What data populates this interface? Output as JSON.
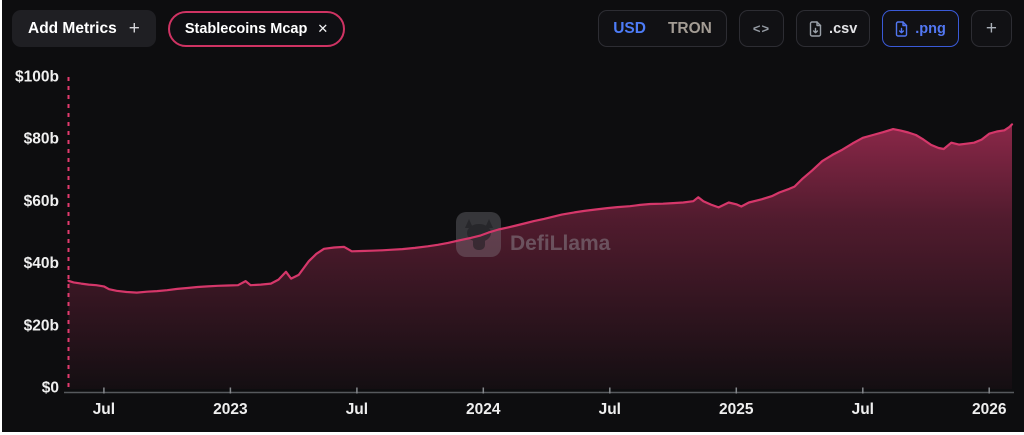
{
  "colors": {
    "background": "#0d0d0f",
    "accent_pink": "#d5376a",
    "dashed_line_pink": "#e23a6e",
    "selected_blue": "#4d7cf7",
    "png_button_blue": "#5277f2",
    "axis_line_gray": "#56595d",
    "tick_text": "#efefef",
    "watermark_gray": "#96969d"
  },
  "toolbar": {
    "add_metrics": {
      "label": "Add Metrics",
      "icon": "+"
    },
    "metric_chip": {
      "label": "Stablecoins Mcap",
      "close_icon": "✕"
    },
    "currency_toggle": {
      "selected": "USD",
      "options": [
        {
          "label": "USD"
        },
        {
          "label": "TRON"
        }
      ]
    },
    "embed_button": {
      "label": "<>"
    },
    "csv_button": {
      "label": ".csv"
    },
    "png_button": {
      "label": ".png"
    },
    "add_chart_button": {
      "label": "+"
    }
  },
  "watermark": {
    "label": "DefiLlama"
  },
  "chart_data": {
    "type": "area",
    "title": "Stablecoins Mcap",
    "currency": "USD",
    "unit": "USD billions",
    "grid": false,
    "legend_position": "none",
    "ylim": [
      0,
      100
    ],
    "x_range": [
      2022.358,
      2026.09
    ],
    "y_ticks": [
      {
        "label": "$100b",
        "value": 100
      },
      {
        "label": "$80b",
        "value": 80
      },
      {
        "label": "$60b",
        "value": 60
      },
      {
        "label": "$40b",
        "value": 40
      },
      {
        "label": "$20b",
        "value": 20
      },
      {
        "label": "$0",
        "value": 0
      }
    ],
    "x_ticks": [
      {
        "label": "Jul",
        "year": 2022.5
      },
      {
        "label": "2023",
        "year": 2023
      },
      {
        "label": "Jul",
        "year": 2023.5
      },
      {
        "label": "2024",
        "year": 2024
      },
      {
        "label": "Jul",
        "year": 2024.5
      },
      {
        "label": "2025",
        "year": 2025
      },
      {
        "label": "Jul",
        "year": 2025.5
      },
      {
        "label": "2026",
        "year": 2026
      }
    ],
    "series": [
      {
        "name": "Stablecoins Mcap",
        "color": "#d5376a",
        "points": [
          [
            2022.36,
            34.3
          ],
          [
            2022.38,
            33.8
          ],
          [
            2022.41,
            33.4
          ],
          [
            2022.44,
            33.1
          ],
          [
            2022.47,
            32.9
          ],
          [
            2022.5,
            32.5
          ],
          [
            2022.52,
            31.6
          ],
          [
            2022.55,
            31.1
          ],
          [
            2022.59,
            30.7
          ],
          [
            2022.63,
            30.5
          ],
          [
            2022.67,
            30.8
          ],
          [
            2022.71,
            31.0
          ],
          [
            2022.75,
            31.3
          ],
          [
            2022.79,
            31.7
          ],
          [
            2022.83,
            32.0
          ],
          [
            2022.87,
            32.3
          ],
          [
            2022.91,
            32.5
          ],
          [
            2022.95,
            32.7
          ],
          [
            2022.99,
            32.8
          ],
          [
            2023.03,
            32.9
          ],
          [
            2023.06,
            34.2
          ],
          [
            2023.08,
            32.9
          ],
          [
            2023.12,
            33.1
          ],
          [
            2023.16,
            33.4
          ],
          [
            2023.19,
            34.7
          ],
          [
            2023.22,
            37.2
          ],
          [
            2023.24,
            35.0
          ],
          [
            2023.27,
            36.2
          ],
          [
            2023.29,
            38.4
          ],
          [
            2023.31,
            40.6
          ],
          [
            2023.34,
            43.0
          ],
          [
            2023.37,
            44.6
          ],
          [
            2023.41,
            45.0
          ],
          [
            2023.45,
            45.2
          ],
          [
            2023.48,
            43.8
          ],
          [
            2023.52,
            43.9
          ],
          [
            2023.56,
            44.0
          ],
          [
            2023.6,
            44.1
          ],
          [
            2023.64,
            44.3
          ],
          [
            2023.68,
            44.5
          ],
          [
            2023.73,
            44.9
          ],
          [
            2023.78,
            45.4
          ],
          [
            2023.82,
            45.9
          ],
          [
            2023.86,
            46.5
          ],
          [
            2023.91,
            47.4
          ],
          [
            2023.95,
            48.1
          ],
          [
            2023.99,
            48.9
          ],
          [
            2024.02,
            49.8
          ],
          [
            2024.06,
            50.8
          ],
          [
            2024.1,
            51.5
          ],
          [
            2024.13,
            52.1
          ],
          [
            2024.17,
            52.9
          ],
          [
            2024.2,
            53.5
          ],
          [
            2024.24,
            54.2
          ],
          [
            2024.28,
            55.0
          ],
          [
            2024.31,
            55.6
          ],
          [
            2024.36,
            56.3
          ],
          [
            2024.4,
            56.8
          ],
          [
            2024.44,
            57.2
          ],
          [
            2024.49,
            57.7
          ],
          [
            2024.53,
            58.0
          ],
          [
            2024.58,
            58.3
          ],
          [
            2024.62,
            58.7
          ],
          [
            2024.66,
            59.0
          ],
          [
            2024.71,
            59.1
          ],
          [
            2024.75,
            59.3
          ],
          [
            2024.79,
            59.5
          ],
          [
            2024.83,
            59.9
          ],
          [
            2024.85,
            61.2
          ],
          [
            2024.87,
            59.9
          ],
          [
            2024.9,
            58.8
          ],
          [
            2024.93,
            57.9
          ],
          [
            2024.97,
            59.5
          ],
          [
            2025.0,
            58.9
          ],
          [
            2025.02,
            58.2
          ],
          [
            2025.05,
            59.5
          ],
          [
            2025.1,
            60.5
          ],
          [
            2025.14,
            61.5
          ],
          [
            2025.17,
            62.7
          ],
          [
            2025.21,
            63.9
          ],
          [
            2025.23,
            64.6
          ],
          [
            2025.26,
            67.0
          ],
          [
            2025.3,
            69.8
          ],
          [
            2025.34,
            72.8
          ],
          [
            2025.38,
            74.8
          ],
          [
            2025.42,
            76.5
          ],
          [
            2025.46,
            78.5
          ],
          [
            2025.5,
            80.3
          ],
          [
            2025.54,
            81.2
          ],
          [
            2025.58,
            82.1
          ],
          [
            2025.62,
            83.1
          ],
          [
            2025.65,
            82.6
          ],
          [
            2025.68,
            82.0
          ],
          [
            2025.71,
            81.2
          ],
          [
            2025.74,
            79.7
          ],
          [
            2025.77,
            78.0
          ],
          [
            2025.8,
            77.0
          ],
          [
            2025.82,
            76.7
          ],
          [
            2025.85,
            78.7
          ],
          [
            2025.88,
            78.1
          ],
          [
            2025.91,
            78.4
          ],
          [
            2025.94,
            78.7
          ],
          [
            2025.97,
            79.7
          ],
          [
            2026.0,
            81.6
          ],
          [
            2026.03,
            82.3
          ],
          [
            2026.06,
            82.7
          ],
          [
            2026.08,
            83.8
          ],
          [
            2026.09,
            84.6
          ]
        ]
      }
    ]
  }
}
